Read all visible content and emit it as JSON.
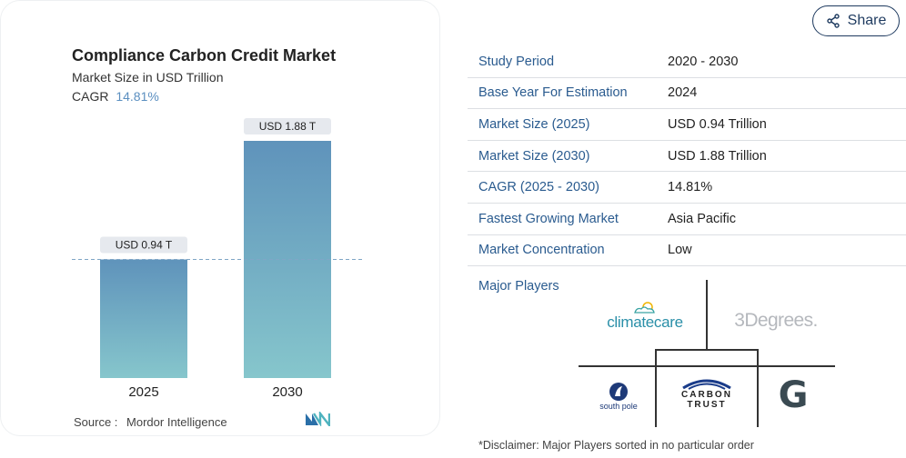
{
  "chart_card": {
    "title": "Compliance Carbon Credit Market",
    "subtitle": "Market Size in USD Trillion",
    "cagr_label": "CAGR",
    "cagr_value": "14.81%",
    "source_label": "Source :",
    "source_value": "Mordor Intelligence"
  },
  "chart_data": {
    "type": "bar",
    "title": "Compliance Carbon Credit Market",
    "subtitle": "Market Size in USD Trillion",
    "categories": [
      "2025",
      "2030"
    ],
    "values": [
      0.94,
      1.88
    ],
    "data_labels": [
      "USD 0.94 T",
      "USD 1.88 T"
    ],
    "ylim": [
      0,
      1.88
    ],
    "reference_line": 0.94,
    "grid": false,
    "colors": {
      "bar_top": "#5f93bb",
      "bar_bottom": "#86c6cc",
      "label_bg": "#e6e9ee",
      "ref_line": "#7fa6c6"
    }
  },
  "share": {
    "label": "Share",
    "icon": "share-icon"
  },
  "facts": [
    {
      "label": "Study Period",
      "value": "2020 - 2030"
    },
    {
      "label": "Base Year For Estimation",
      "value": "2024"
    },
    {
      "label": "Market Size (2025)",
      "value": "USD 0.94 Trillion"
    },
    {
      "label": "Market Size (2030)",
      "value": "USD 1.88 Trillion"
    },
    {
      "label": "CAGR (2025 - 2030)",
      "value": "14.81%"
    },
    {
      "label": "Fastest Growing Market",
      "value": "Asia Pacific"
    },
    {
      "label": "Market Concentration",
      "value": "Low"
    }
  ],
  "players": {
    "label": "Major Players",
    "logos": [
      {
        "name": "climatecare",
        "text": "climatecare"
      },
      {
        "name": "3degrees",
        "text": "3Degrees."
      },
      {
        "name": "south-pole",
        "text": "south pole"
      },
      {
        "name": "carbon-trust",
        "line1": "CARBON",
        "line2": "TRUST"
      },
      {
        "name": "g-logo",
        "text": "G"
      }
    ]
  },
  "disclaimer": "*Disclaimer: Major Players sorted in no particular order"
}
